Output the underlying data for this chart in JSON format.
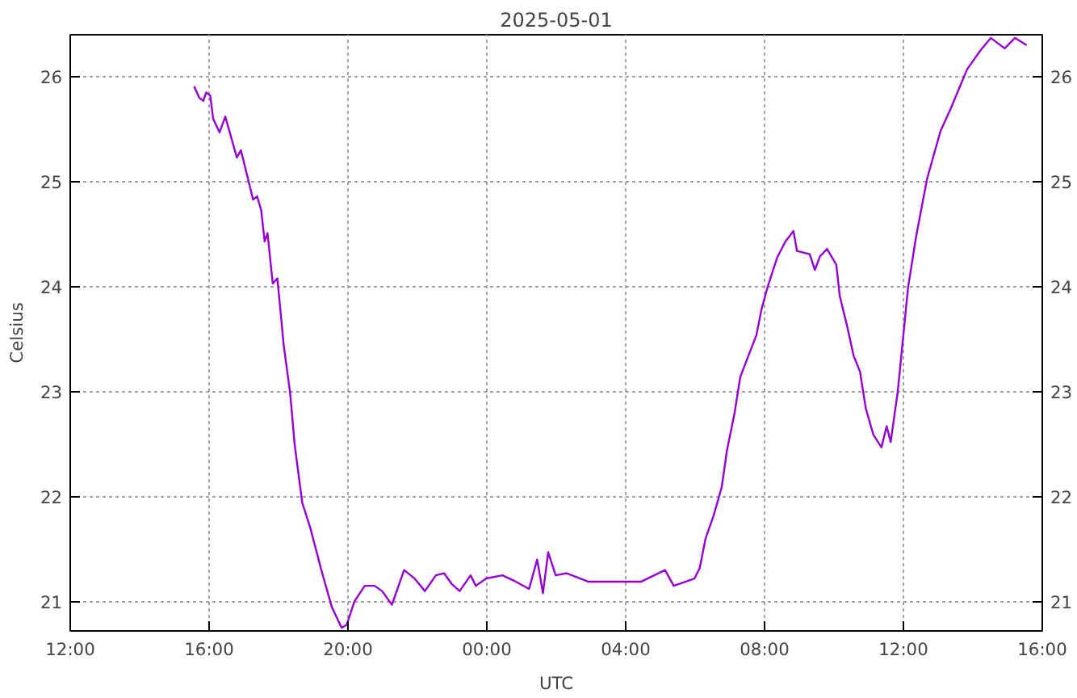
{
  "chart_data": {
    "type": "line",
    "title": "2025-05-01",
    "xlabel": "UTC",
    "ylabel": "Celsius",
    "xlim": [
      "2025-04-30T12:00",
      "2025-05-01T16:00"
    ],
    "xticks": [
      {
        "value": "2025-04-30T12:00",
        "label": "12:00"
      },
      {
        "value": "2025-04-30T16:00",
        "label": "16:00"
      },
      {
        "value": "2025-04-30T20:00",
        "label": "20:00"
      },
      {
        "value": "2025-05-01T00:00",
        "label": "00:00"
      },
      {
        "value": "2025-05-01T04:00",
        "label": "04:00"
      },
      {
        "value": "2025-05-01T08:00",
        "label": "08:00"
      },
      {
        "value": "2025-05-01T12:00",
        "label": "12:00"
      },
      {
        "value": "2025-05-01T16:00",
        "label": "16:00"
      }
    ],
    "ylim": [
      20.72,
      26.4
    ],
    "yticks": [
      21,
      22,
      23,
      24,
      25,
      26
    ],
    "y2lim": [
      20.72,
      26.4
    ],
    "y2ticks": [
      21,
      22,
      23,
      24,
      25,
      26
    ],
    "grid": true,
    "line_style": "solid",
    "x": [
      "2025-04-30T15:34",
      "2025-04-30T15:43",
      "2025-04-30T15:50",
      "2025-04-30T15:55",
      "2025-04-30T16:02",
      "2025-04-30T16:07",
      "2025-04-30T16:18",
      "2025-04-30T16:28",
      "2025-04-30T16:48",
      "2025-04-30T16:55",
      "2025-04-30T17:16",
      "2025-04-30T17:23",
      "2025-04-30T17:30",
      "2025-04-30T17:36",
      "2025-04-30T17:41",
      "2025-04-30T17:50",
      "2025-04-30T17:58",
      "2025-04-30T18:09",
      "2025-04-30T18:20",
      "2025-04-30T18:28",
      "2025-04-30T18:41",
      "2025-04-30T18:55",
      "2025-04-30T19:14",
      "2025-04-30T19:32",
      "2025-04-30T19:49",
      "2025-04-30T19:58",
      "2025-04-30T20:11",
      "2025-04-30T20:29",
      "2025-04-30T20:46",
      "2025-04-30T20:59",
      "2025-04-30T21:16",
      "2025-04-30T21:37",
      "2025-04-30T21:55",
      "2025-04-30T22:13",
      "2025-04-30T22:32",
      "2025-04-30T22:46",
      "2025-04-30T22:59",
      "2025-04-30T23:13",
      "2025-04-30T23:32",
      "2025-04-30T23:41",
      "2025-04-30T23:59",
      "2025-05-01T00:27",
      "2025-05-01T00:50",
      "2025-05-01T01:13",
      "2025-05-01T01:27",
      "2025-05-01T01:37",
      "2025-05-01T01:46",
      "2025-05-01T01:59",
      "2025-05-01T02:18",
      "2025-05-01T02:55",
      "2025-05-01T03:41",
      "2025-05-01T04:27",
      "2025-05-01T05:08",
      "2025-05-01T05:23",
      "2025-05-01T05:59",
      "2025-05-01T06:08",
      "2025-05-01T06:18",
      "2025-05-01T06:32",
      "2025-05-01T06:46",
      "2025-05-01T06:55",
      "2025-05-01T07:08",
      "2025-05-01T07:18",
      "2025-05-01T07:32",
      "2025-05-01T07:46",
      "2025-05-01T07:55",
      "2025-05-01T08:06",
      "2025-05-01T08:22",
      "2025-05-01T08:36",
      "2025-05-01T08:50",
      "2025-05-01T08:56",
      "2025-05-01T09:18",
      "2025-05-01T09:27",
      "2025-05-01T09:36",
      "2025-05-01T09:48",
      "2025-05-01T10:04",
      "2025-05-01T10:10",
      "2025-05-01T10:22",
      "2025-05-01T10:34",
      "2025-05-01T10:45",
      "2025-05-01T10:55",
      "2025-05-01T11:08",
      "2025-05-01T11:22",
      "2025-05-01T11:31",
      "2025-05-01T11:38",
      "2025-05-01T11:50",
      "2025-05-01T11:59",
      "2025-05-01T12:08",
      "2025-05-01T12:22",
      "2025-05-01T12:41",
      "2025-05-01T13:04",
      "2025-05-01T13:22",
      "2025-05-01T13:50",
      "2025-05-01T14:13",
      "2025-05-01T14:31",
      "2025-05-01T14:55",
      "2025-05-01T15:13",
      "2025-05-01T15:33"
    ],
    "series": [
      {
        "color": "#9400d3",
        "values": [
          25.91,
          25.8,
          25.77,
          25.85,
          25.82,
          25.6,
          25.47,
          25.62,
          25.23,
          25.3,
          24.83,
          24.86,
          24.73,
          24.43,
          24.51,
          24.03,
          24.08,
          23.44,
          22.99,
          22.49,
          21.94,
          21.7,
          21.3,
          20.95,
          20.75,
          20.78,
          21.0,
          21.15,
          21.15,
          21.1,
          20.97,
          21.3,
          21.22,
          21.1,
          21.25,
          21.27,
          21.17,
          21.1,
          21.25,
          21.15,
          21.22,
          21.25,
          21.19,
          21.12,
          21.4,
          21.08,
          21.47,
          21.25,
          21.27,
          21.19,
          21.19,
          21.19,
          21.3,
          21.15,
          21.22,
          21.32,
          21.6,
          21.82,
          22.09,
          22.44,
          22.79,
          23.14,
          23.34,
          23.54,
          23.79,
          24.01,
          24.28,
          24.43,
          24.53,
          24.34,
          24.31,
          24.16,
          24.29,
          24.36,
          24.21,
          23.91,
          23.64,
          23.34,
          23.19,
          22.84,
          22.59,
          22.47,
          22.67,
          22.52,
          22.99,
          23.49,
          23.99,
          24.48,
          25.03,
          25.48,
          25.7,
          26.07,
          26.25,
          26.37,
          26.27,
          26.37,
          26.3
        ]
      }
    ]
  }
}
